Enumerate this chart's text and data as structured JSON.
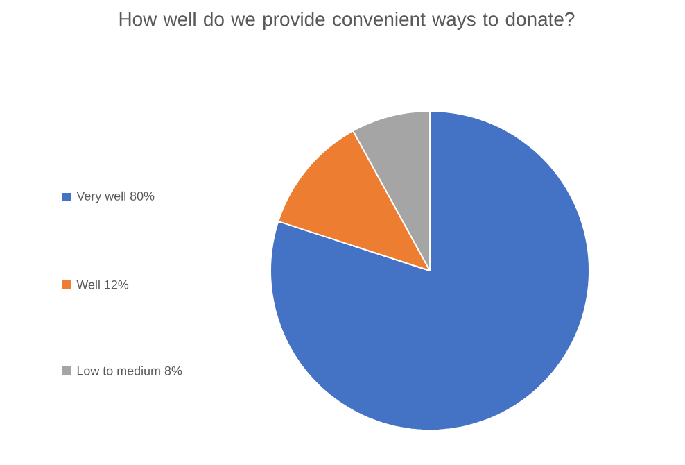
{
  "chart_data": {
    "type": "pie",
    "title": "How well do we provide convenient ways to donate?",
    "categories": [
      "Very well 80%",
      "Well 12%",
      "Low to medium 8%"
    ],
    "values": [
      80,
      12,
      8
    ],
    "colors": [
      "#4472c4",
      "#ed7d31",
      "#a5a5a5"
    ],
    "legend": "left"
  }
}
